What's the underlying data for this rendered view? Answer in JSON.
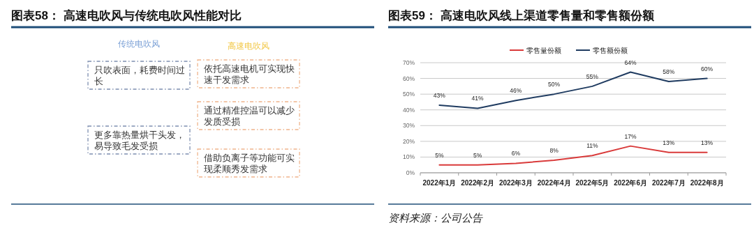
{
  "chart_data": [
    {
      "type": "other",
      "title": "图表58：  高速电吹风与传统电吹风性能对比",
      "annotations": [
        "传统电吹风",
        "高速电吹风",
        "只吹表面，耗费时间过长",
        "依托高速电机可实现快速干发需求",
        "通过精准控温可以减少发质受损",
        "更多靠热量烘干头发，易导致毛发受损",
        "借助负离子等功能可实现柔顺秀发需求"
      ]
    },
    {
      "type": "line",
      "title": "图表59：  高速电吹风线上渠道零售量和零售额份额",
      "categories": [
        "2022年1月",
        "2022年2月",
        "2022年3月",
        "2022年4月",
        "2022年5月",
        "2022年6月",
        "2022年7月",
        "2022年8月"
      ],
      "series": [
        {
          "name": "零售量份额",
          "color": "#d93a3a",
          "values": [
            5,
            5,
            6,
            8,
            11,
            17,
            13,
            13
          ],
          "value_labels": [
            "5%",
            "5%",
            "6%",
            "8%",
            "11%",
            "17%",
            "13%",
            "13%"
          ]
        },
        {
          "name": "零售额份额",
          "color": "#1f3b60",
          "values": [
            43,
            41,
            46,
            50,
            55,
            64,
            58,
            60
          ],
          "value_labels": [
            "43%",
            "41%",
            "46%",
            "50%",
            "55%",
            "64%",
            "58%",
            "60%"
          ]
        }
      ],
      "ylim": [
        0,
        70
      ],
      "yticks": [
        {
          "value": 0,
          "label": "0%"
        },
        {
          "value": 10,
          "label": "10%"
        },
        {
          "value": 20,
          "label": "20%"
        },
        {
          "value": 30,
          "label": "30%"
        },
        {
          "value": 40,
          "label": "40%"
        },
        {
          "value": 50,
          "label": "50%"
        },
        {
          "value": 60,
          "label": "60%"
        },
        {
          "value": 70,
          "label": "70%"
        }
      ],
      "grid": "y",
      "legend": "top",
      "marker": "none",
      "line_style": "solid",
      "annotations": [
        "资料来源：公司公告"
      ]
    }
  ]
}
